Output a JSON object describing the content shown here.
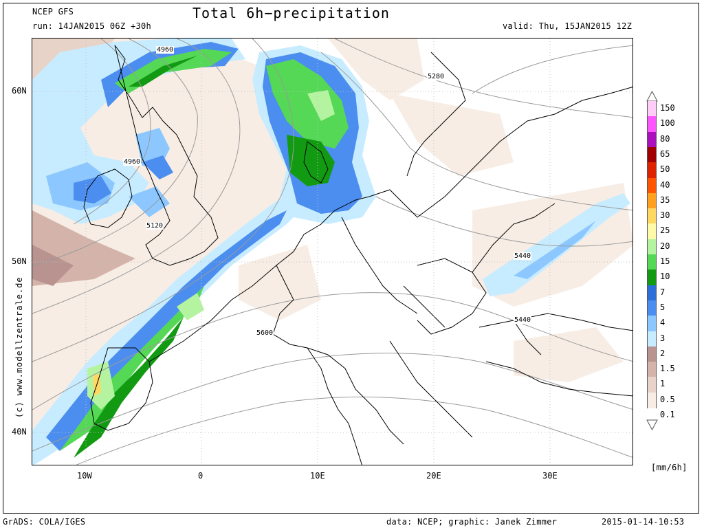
{
  "header": {
    "model": "NCEP GFS",
    "run": "run: 14JAN2015 06Z +30h",
    "title": "Total 6h−precipitation",
    "valid": "valid: Thu, 15JAN2015 12Z"
  },
  "map": {
    "lat_labels": [
      "60N",
      "50N",
      "40N"
    ],
    "lon_labels": [
      "10W",
      "0",
      "10E",
      "20E",
      "30E"
    ],
    "contour_labels": [
      "4960",
      "4960",
      "5120",
      "5280",
      "5440",
      "5440",
      "5600"
    ]
  },
  "legend": {
    "levels": [
      "150",
      "100",
      "80",
      "65",
      "50",
      "40",
      "35",
      "30",
      "25",
      "20",
      "15",
      "10",
      "7",
      "5",
      "4",
      "3",
      "2",
      "1.5",
      "1",
      "0.5",
      "0.1"
    ],
    "colors": [
      "#ffcdf8",
      "#ff55ff",
      "#aa10bb",
      "#a00000",
      "#dd2200",
      "#ff5500",
      "#ffa020",
      "#ffd864",
      "#fffaaa",
      "#b4f4a0",
      "#55d855",
      "#139a13",
      "#2d6ed8",
      "#4b8eef",
      "#8cc8ff",
      "#c8ecff",
      "#b89390",
      "#d4b4aa",
      "#e8d3c8",
      "#f7ede5"
    ],
    "unit": "[mm/6h]"
  },
  "credit": "(c) www.modellzentrale.de",
  "footer": {
    "grads": "GrADS: COLA/IGES",
    "source": "data: NCEP; graphic: Janek Zimmer",
    "timestamp": "2015-01-14-10:53"
  }
}
